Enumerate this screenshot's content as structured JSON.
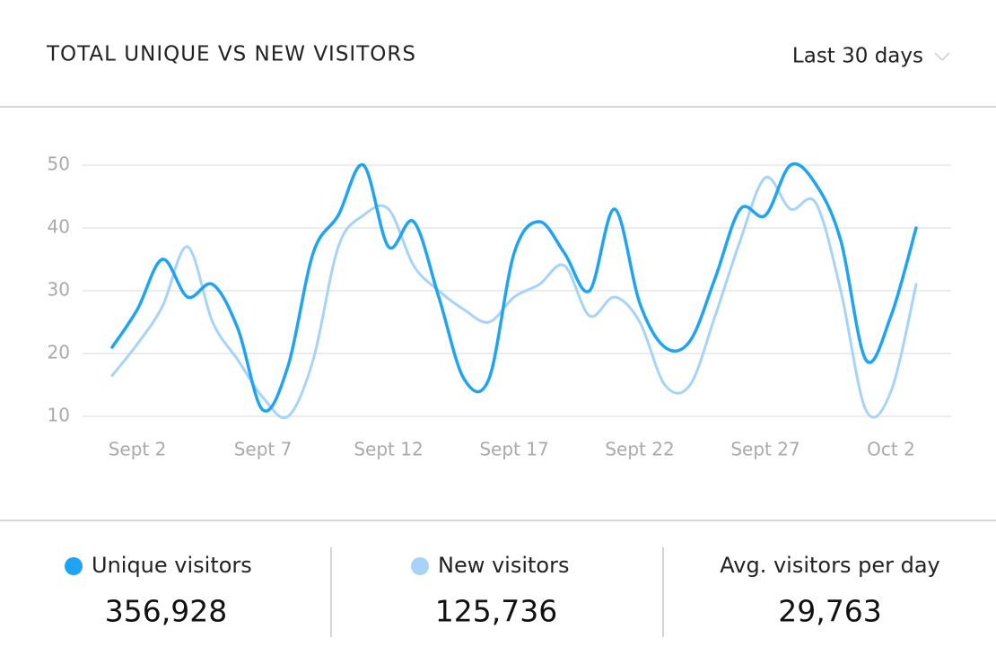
{
  "header": {
    "title": "TOTAL UNIQUE VS NEW VISITORS",
    "range": "Last 30 days"
  },
  "chart_data": {
    "type": "line",
    "categories": [
      null,
      "Sept 2",
      null,
      null,
      null,
      null,
      "Sept 7",
      null,
      null,
      null,
      null,
      "Sept 12",
      null,
      null,
      null,
      null,
      "Sept 17",
      null,
      null,
      null,
      null,
      "Sept 22",
      null,
      null,
      null,
      null,
      "Sept 27",
      null,
      null,
      null,
      null,
      "Oct 2",
      null
    ],
    "series": [
      {
        "name": "Unique visitors",
        "color": "#1ea4f2",
        "values": [
          21,
          27,
          35,
          29,
          31,
          24,
          11,
          18,
          36,
          42,
          50,
          37,
          41,
          29,
          16,
          16,
          36,
          41,
          36,
          30,
          43,
          28,
          21,
          22,
          32,
          43,
          42,
          50,
          47,
          38,
          19,
          26,
          40
        ]
      },
      {
        "name": "New visitors",
        "color": "#a7d3fa",
        "values": [
          16.5,
          21.5,
          27.5,
          37,
          25,
          19,
          13,
          10,
          19,
          37,
          42,
          43,
          34,
          30,
          27,
          25,
          29,
          31,
          34,
          26,
          29,
          25,
          15,
          15,
          26,
          38,
          48,
          43,
          44,
          30,
          11,
          14,
          31
        ]
      }
    ],
    "ylim": [
      0,
      60
    ],
    "yticks": [
      10,
      20,
      30,
      40,
      50
    ],
    "grid": true
  },
  "stats": [
    {
      "value": "356,928"
    },
    {
      "value": "125,736"
    },
    {
      "label": "Avg. visitors per day",
      "value": "29,763"
    }
  ]
}
